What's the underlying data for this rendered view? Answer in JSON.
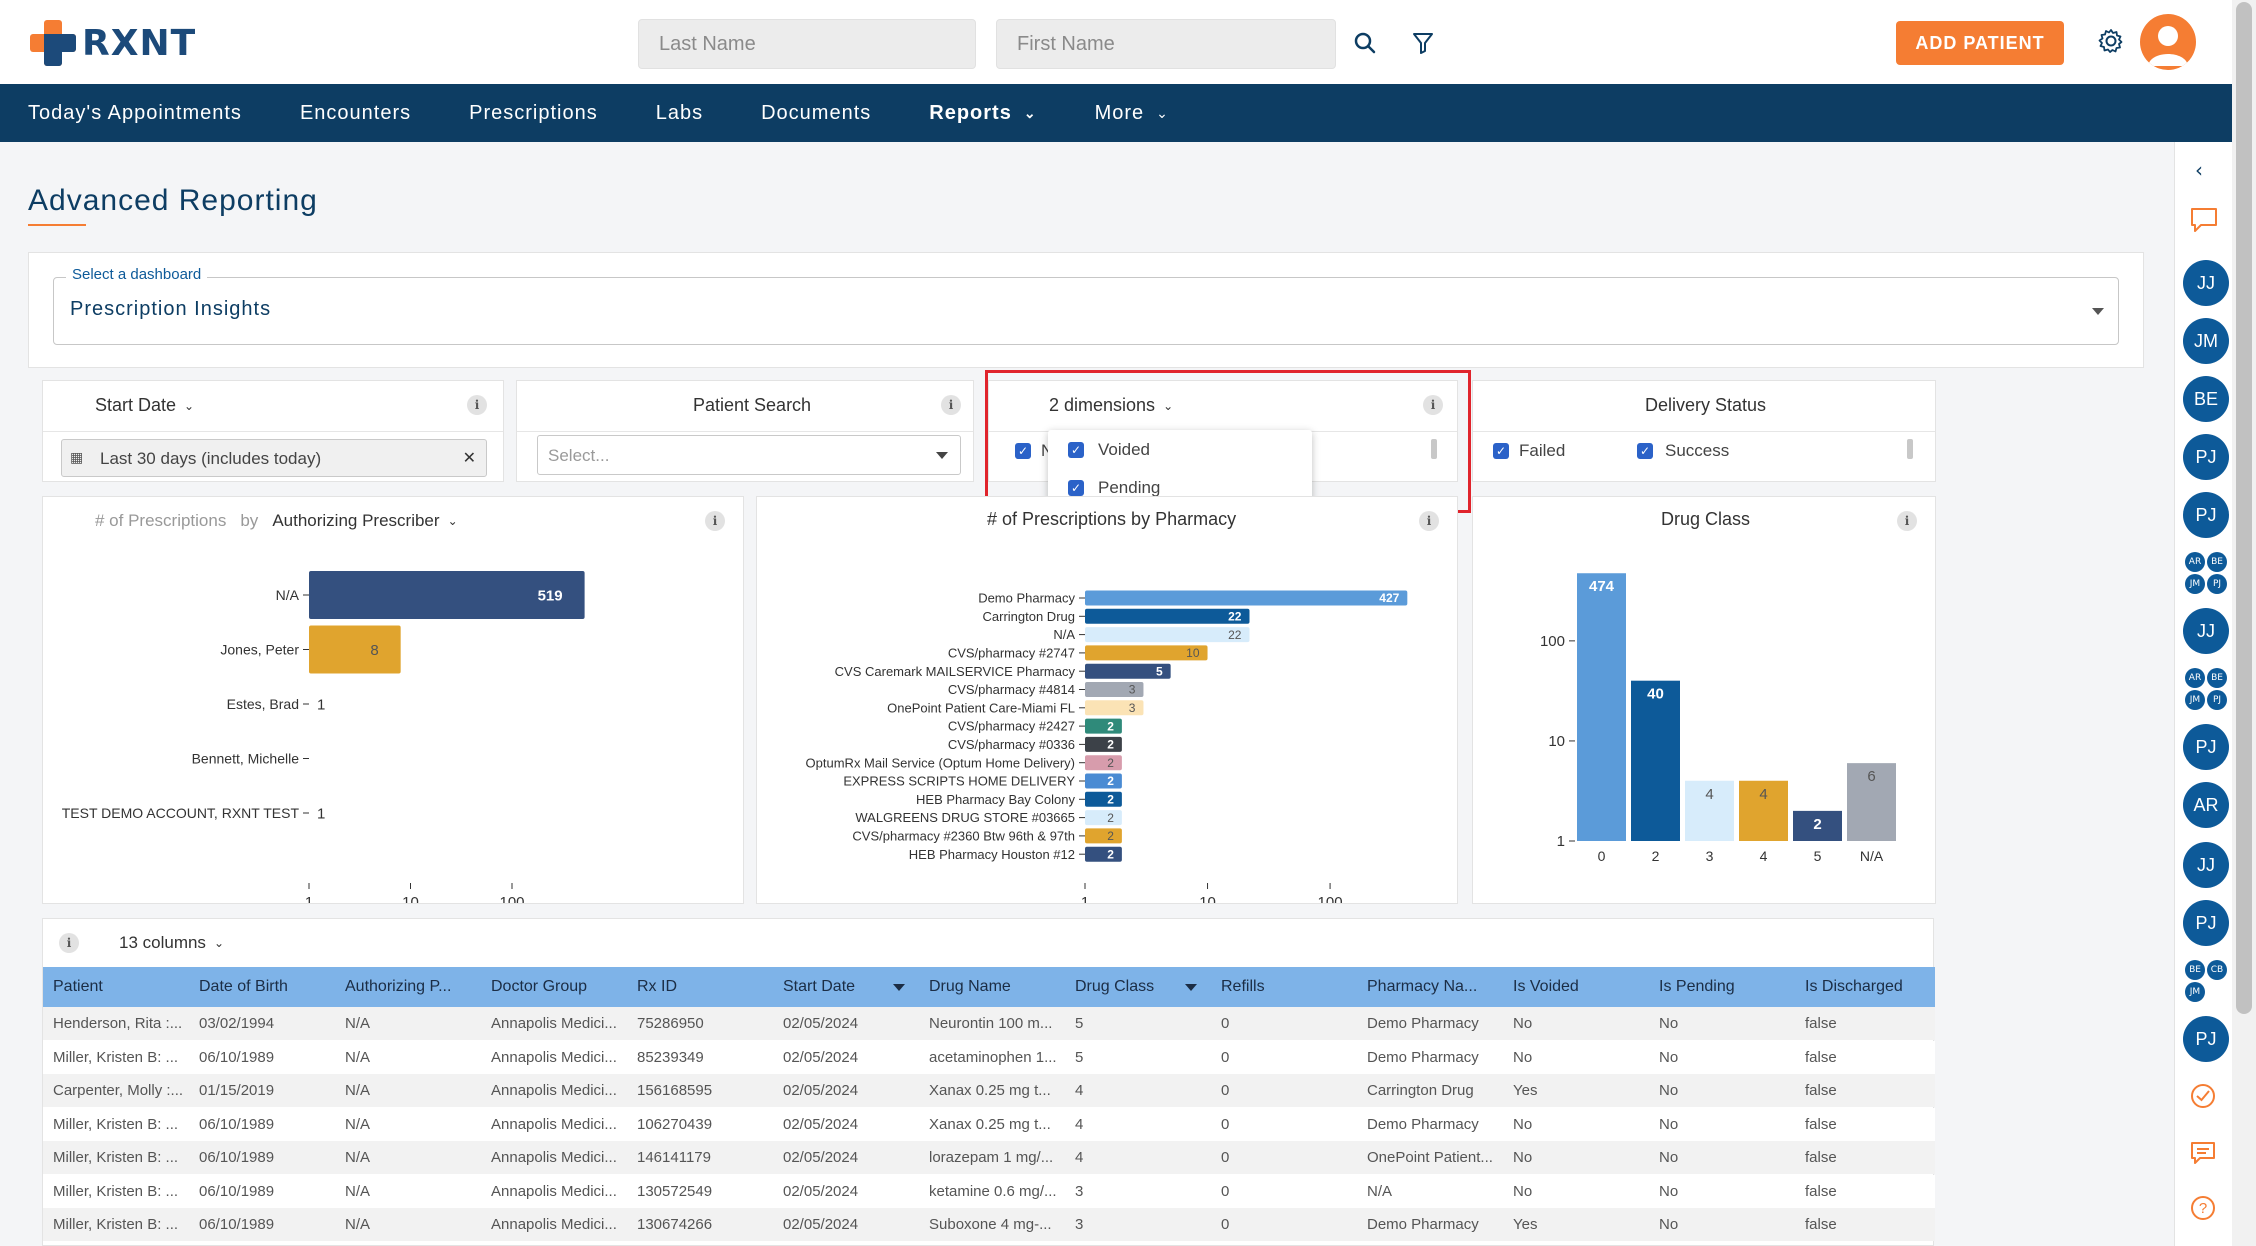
{
  "brand": {
    "name": "RXNT"
  },
  "header": {
    "last_name_placeholder": "Last Name",
    "first_name_placeholder": "First Name",
    "add_patient_label": "ADD PATIENT"
  },
  "nav": {
    "items": [
      "Today's Appointments",
      "Encounters",
      "Prescriptions",
      "Labs",
      "Documents"
    ],
    "reports": "Reports",
    "more": "More"
  },
  "page": {
    "title": "Advanced Reporting"
  },
  "dashboard_select": {
    "label": "Select a dashboard",
    "value": "Prescription Insights"
  },
  "filters": {
    "start_date": {
      "title": "Start Date",
      "value": "Last 30 days (includes today)"
    },
    "patient_search": {
      "title": "Patient Search",
      "placeholder": "Select..."
    },
    "dimensions": {
      "title": "2 dimensions",
      "behind_label": "N",
      "options": [
        "Voided",
        "Pending"
      ]
    },
    "delivery_status": {
      "title": "Delivery Status",
      "options": [
        "Failed",
        "Success"
      ]
    }
  },
  "prescriber_chart_header": {
    "metric": "# of Prescriptions",
    "by": "by",
    "dimension": "Authorizing Prescriber"
  },
  "pharmacy_chart_header": {
    "title": "# of Prescriptions by Pharmacy"
  },
  "drug_chart_header": {
    "title": "Drug Class"
  },
  "chart_data": [
    {
      "type": "bar",
      "orientation": "horizontal",
      "scale": "log",
      "categories": [
        "N/A",
        "Jones, Peter",
        "Estes, Brad",
        "Bennett, Michelle",
        "TEST DEMO ACCOUNT, RXNT TEST"
      ],
      "values": [
        519,
        8,
        1,
        0,
        1
      ],
      "data_labels": [
        "519",
        "8",
        "1",
        "",
        "1"
      ],
      "colors": [
        "#34507f",
        "#e0a42e",
        "#34507f",
        "#34507f",
        "#34507f"
      ],
      "ticks": [
        "1",
        "10",
        "100"
      ]
    },
    {
      "type": "bar",
      "orientation": "horizontal",
      "scale": "log",
      "title": "# of Prescriptions by Pharmacy",
      "categories": [
        "Demo Pharmacy",
        "Carrington Drug",
        "N/A",
        "CVS/pharmacy #2747",
        "CVS Caremark MAILSERVICE Pharmacy",
        "CVS/pharmacy #4814",
        "OnePoint Patient Care-Miami FL",
        "CVS/pharmacy #2427",
        "CVS/pharmacy #0336",
        "OptumRx Mail Service (Optum Home Delivery)",
        "EXPRESS SCRIPTS HOME DELIVERY",
        "HEB Pharmacy Bay Colony",
        "WALGREENS DRUG STORE #03665",
        "CVS/pharmacy #2360 Btw 96th & 97th",
        "HEB Pharmacy Houston #12"
      ],
      "values": [
        427,
        22,
        22,
        10,
        5,
        3,
        3,
        2,
        2,
        2,
        2,
        2,
        2,
        2,
        2
      ],
      "colors": [
        "#5b9bd9",
        "#0d5a99",
        "#d7ecfb",
        "#e0a42e",
        "#34507f",
        "#a2a8b3",
        "#fbe3b5",
        "#2f8a7a",
        "#3c4148",
        "#d79cac",
        "#4a8bd3",
        "#0d5a99",
        "#d7ecfb",
        "#e0a42e",
        "#34507f"
      ],
      "ticks": [
        "1",
        "10",
        "100"
      ]
    },
    {
      "type": "bar",
      "orientation": "vertical",
      "scale": "log",
      "title": "Drug Class",
      "categories": [
        "0",
        "2",
        "3",
        "4",
        "5",
        "N/A"
      ],
      "values": [
        474,
        40,
        4,
        4,
        2,
        6
      ],
      "colors": [
        "#5b9bd9",
        "#0d5a99",
        "#d7ecfb",
        "#e0a42e",
        "#34507f",
        "#a2a8b3"
      ],
      "ticks": [
        "1",
        "10",
        "100"
      ]
    }
  ],
  "table": {
    "columns_label": "13 columns",
    "headers": [
      "Patient",
      "Date of Birth",
      "Authorizing P...",
      "Doctor Group",
      "Rx ID",
      "Start Date",
      "Drug Name",
      "Drug Class",
      "Refills",
      "Pharmacy Na...",
      "Is Voided",
      "Is Pending",
      "Is Discharged"
    ],
    "rows": [
      [
        "Henderson, Rita :...",
        "03/02/1994",
        "N/A",
        "Annapolis Medici...",
        "75286950",
        "02/05/2024",
        "Neurontin 100 m...",
        "5",
        "0",
        "Demo Pharmacy",
        "No",
        "No",
        "false"
      ],
      [
        "Miller, Kristen B: ...",
        "06/10/1989",
        "N/A",
        "Annapolis Medici...",
        "85239349",
        "02/05/2024",
        "acetaminophen 1...",
        "5",
        "0",
        "Demo Pharmacy",
        "No",
        "No",
        "false"
      ],
      [
        "Carpenter, Molly :...",
        "01/15/2019",
        "N/A",
        "Annapolis Medici...",
        "156168595",
        "02/05/2024",
        "Xanax 0.25 mg t...",
        "4",
        "0",
        "Carrington Drug",
        "Yes",
        "No",
        "false"
      ],
      [
        "Miller, Kristen B: ...",
        "06/10/1989",
        "N/A",
        "Annapolis Medici...",
        "106270439",
        "02/05/2024",
        "Xanax 0.25 mg t...",
        "4",
        "0",
        "Demo Pharmacy",
        "No",
        "No",
        "false"
      ],
      [
        "Miller, Kristen B: ...",
        "06/10/1989",
        "N/A",
        "Annapolis Medici...",
        "146141179",
        "02/05/2024",
        "lorazepam 1 mg/...",
        "4",
        "0",
        "OnePoint Patient...",
        "No",
        "No",
        "false"
      ],
      [
        "Miller, Kristen B: ...",
        "06/10/1989",
        "N/A",
        "Annapolis Medici...",
        "130572549",
        "02/05/2024",
        "ketamine 0.6 mg/...",
        "3",
        "0",
        "N/A",
        "No",
        "No",
        "false"
      ],
      [
        "Miller, Kristen B: ...",
        "06/10/1989",
        "N/A",
        "Annapolis Medici...",
        "130674266",
        "02/05/2024",
        "Suboxone 4 mg-...",
        "3",
        "0",
        "Demo Pharmacy",
        "Yes",
        "No",
        "false"
      ]
    ]
  },
  "right_rail": {
    "avatars": [
      "JJ",
      "JM",
      "BE",
      "PJ",
      "PJ",
      "JJ",
      "PJ",
      "AR",
      "JJ",
      "PJ",
      "PJ"
    ],
    "group1": [
      "AR",
      "BE",
      "JM",
      "PJ"
    ],
    "group2": [
      "AR",
      "BE",
      "JM",
      "PJ"
    ],
    "group3": [
      "BE",
      "CB",
      "JM"
    ]
  },
  "icons": {
    "search": "search-icon",
    "filter": "filter-icon",
    "settings": "gear-icon",
    "user": "user-avatar-icon",
    "collapse": "chevron-left-icon",
    "chat": "chat-icon",
    "tasks": "check-circle-icon",
    "messages": "message-icon",
    "help": "help-icon"
  },
  "colors": {
    "brand_orange": "#f57d33",
    "brand_navy": "#0d3d63",
    "table_header": "#7eb3e8"
  }
}
